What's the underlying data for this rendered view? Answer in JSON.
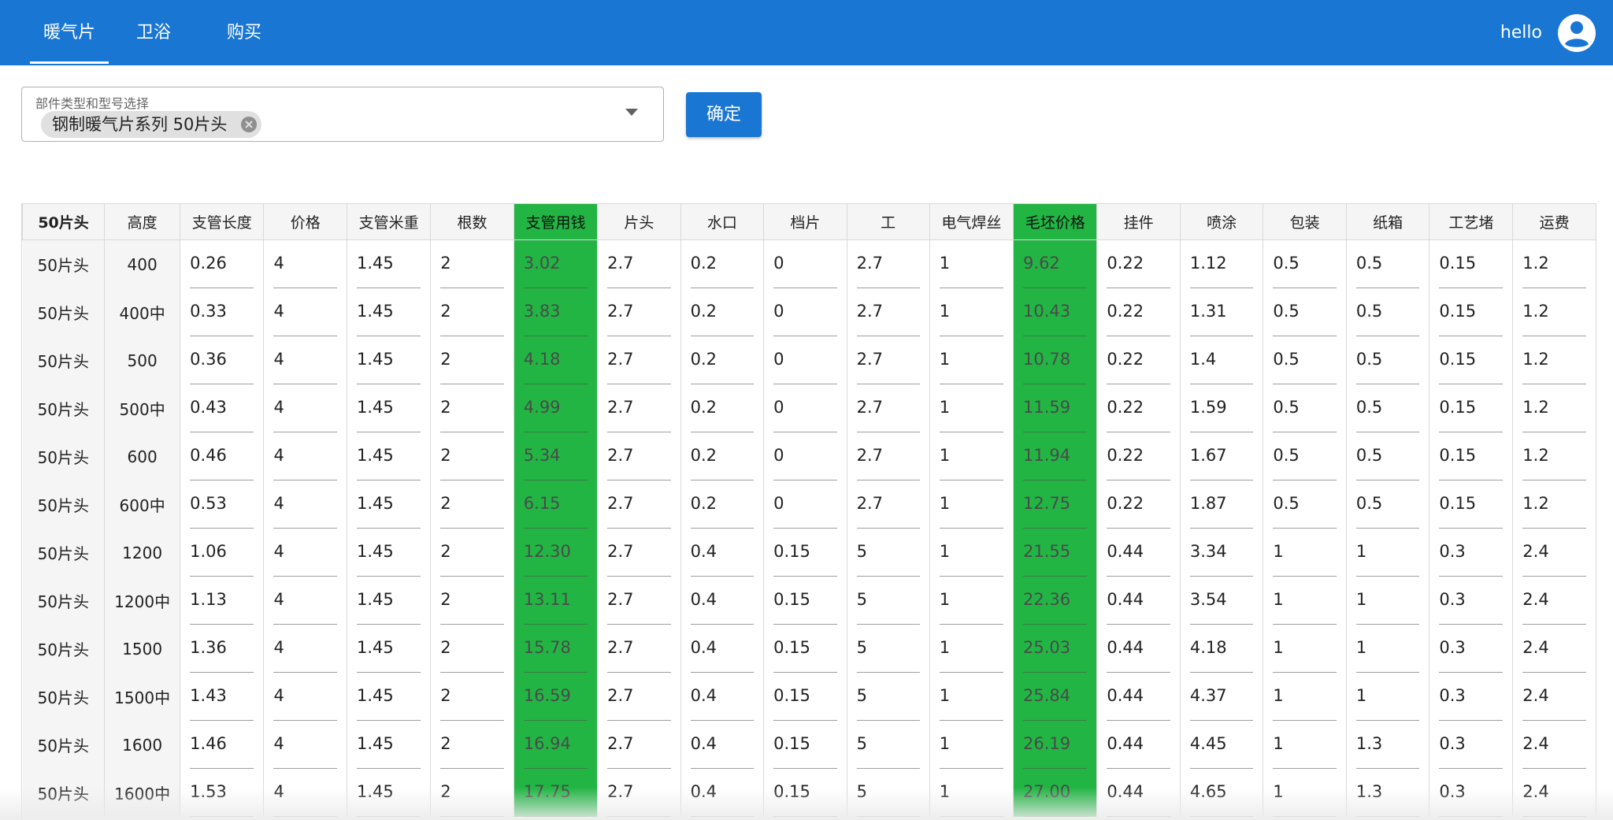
{
  "appbar": {
    "tabs": [
      "暖气片",
      "卫浴",
      "购买"
    ],
    "active_tab": 0,
    "user_name": "hello"
  },
  "selector": {
    "label": "部件类型和型号选择",
    "chip": "钢制暖气片系列 50片头"
  },
  "confirm_label": "确定",
  "table": {
    "headers": [
      "50片头",
      "高度",
      "支管长度",
      "价格",
      "支管米重",
      "根数",
      "支管用钱",
      "片头",
      "水口",
      "档片",
      "工",
      "电气焊丝",
      "毛坯价格",
      "挂件",
      "喷涂",
      "包装",
      "纸箱",
      "工艺堵",
      "运费"
    ],
    "highlight_columns": [
      6,
      12
    ],
    "highlight_color": "#22b544",
    "rows": [
      [
        "50片头",
        "400",
        "0.26",
        "4",
        "1.45",
        "2",
        "3.02",
        "2.7",
        "0.2",
        "0",
        "2.7",
        "1",
        "9.62",
        "0.22",
        "1.12",
        "0.5",
        "0.5",
        "0.15",
        "1.2"
      ],
      [
        "50片头",
        "400中",
        "0.33",
        "4",
        "1.45",
        "2",
        "3.83",
        "2.7",
        "0.2",
        "0",
        "2.7",
        "1",
        "10.43",
        "0.22",
        "1.31",
        "0.5",
        "0.5",
        "0.15",
        "1.2"
      ],
      [
        "50片头",
        "500",
        "0.36",
        "4",
        "1.45",
        "2",
        "4.18",
        "2.7",
        "0.2",
        "0",
        "2.7",
        "1",
        "10.78",
        "0.22",
        "1.4",
        "0.5",
        "0.5",
        "0.15",
        "1.2"
      ],
      [
        "50片头",
        "500中",
        "0.43",
        "4",
        "1.45",
        "2",
        "4.99",
        "2.7",
        "0.2",
        "0",
        "2.7",
        "1",
        "11.59",
        "0.22",
        "1.59",
        "0.5",
        "0.5",
        "0.15",
        "1.2"
      ],
      [
        "50片头",
        "600",
        "0.46",
        "4",
        "1.45",
        "2",
        "5.34",
        "2.7",
        "0.2",
        "0",
        "2.7",
        "1",
        "11.94",
        "0.22",
        "1.67",
        "0.5",
        "0.5",
        "0.15",
        "1.2"
      ],
      [
        "50片头",
        "600中",
        "0.53",
        "4",
        "1.45",
        "2",
        "6.15",
        "2.7",
        "0.2",
        "0",
        "2.7",
        "1",
        "12.75",
        "0.22",
        "1.87",
        "0.5",
        "0.5",
        "0.15",
        "1.2"
      ],
      [
        "50片头",
        "1200",
        "1.06",
        "4",
        "1.45",
        "2",
        "12.30",
        "2.7",
        "0.4",
        "0.15",
        "5",
        "1",
        "21.55",
        "0.44",
        "3.34",
        "1",
        "1",
        "0.3",
        "2.4"
      ],
      [
        "50片头",
        "1200中",
        "1.13",
        "4",
        "1.45",
        "2",
        "13.11",
        "2.7",
        "0.4",
        "0.15",
        "5",
        "1",
        "22.36",
        "0.44",
        "3.54",
        "1",
        "1",
        "0.3",
        "2.4"
      ],
      [
        "50片头",
        "1500",
        "1.36",
        "4",
        "1.45",
        "2",
        "15.78",
        "2.7",
        "0.4",
        "0.15",
        "5",
        "1",
        "25.03",
        "0.44",
        "4.18",
        "1",
        "1",
        "0.3",
        "2.4"
      ],
      [
        "50片头",
        "1500中",
        "1.43",
        "4",
        "1.45",
        "2",
        "16.59",
        "2.7",
        "0.4",
        "0.15",
        "5",
        "1",
        "25.84",
        "0.44",
        "4.37",
        "1",
        "1",
        "0.3",
        "2.4"
      ],
      [
        "50片头",
        "1600",
        "1.46",
        "4",
        "1.45",
        "2",
        "16.94",
        "2.7",
        "0.4",
        "0.15",
        "5",
        "1",
        "26.19",
        "0.44",
        "4.45",
        "1",
        "1.3",
        "0.3",
        "2.4"
      ],
      [
        "50片头",
        "1600中",
        "1.53",
        "4",
        "1.45",
        "2",
        "17.75",
        "2.7",
        "0.4",
        "0.15",
        "5",
        "1",
        "27.00",
        "0.44",
        "4.65",
        "1",
        "1.3",
        "0.3",
        "2.4"
      ]
    ]
  }
}
